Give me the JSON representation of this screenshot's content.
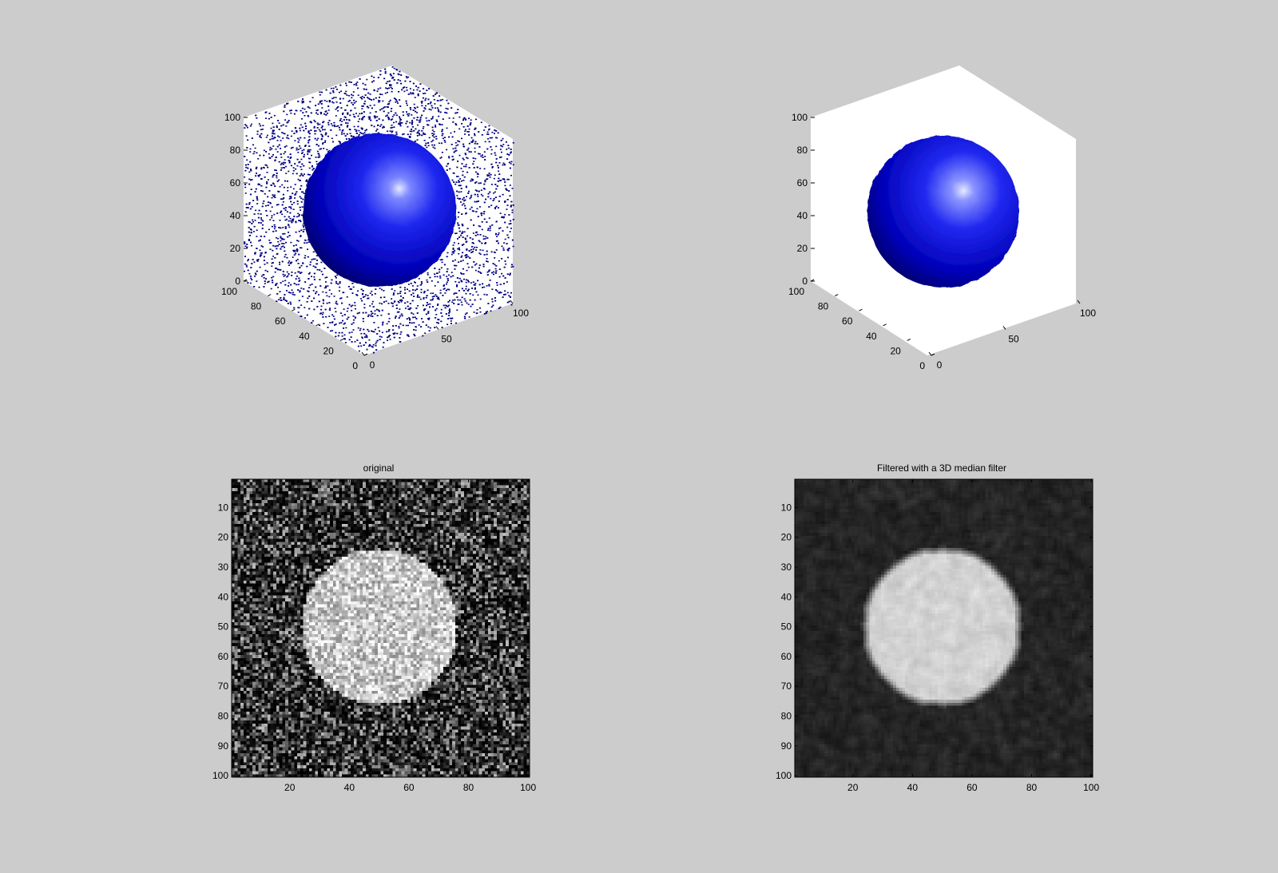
{
  "figure": {
    "background": "#cccccc"
  },
  "chart_data": [
    {
      "type": "isosurface-3d",
      "variant": "noisy",
      "title": "",
      "surface_color": "#0000ff",
      "noise_color": "#000080",
      "x_ticks": [
        "0",
        "50",
        "100"
      ],
      "y_ticks": [
        "0",
        "20",
        "40",
        "60",
        "80",
        "100"
      ],
      "z_ticks": [
        "0",
        "20",
        "40",
        "60",
        "80",
        "100"
      ],
      "xlim": [
        0,
        100
      ],
      "ylim": [
        0,
        100
      ],
      "zlim": [
        0,
        100
      ],
      "sphere": {
        "center": [
          50,
          50,
          50
        ],
        "radius": 26
      }
    },
    {
      "type": "isosurface-3d",
      "variant": "filtered",
      "title": "",
      "surface_color": "#0000ff",
      "x_ticks": [
        "0",
        "50",
        "100"
      ],
      "y_ticks": [
        "0",
        "20",
        "40",
        "60",
        "80",
        "100"
      ],
      "z_ticks": [
        "0",
        "20",
        "40",
        "60",
        "80",
        "100"
      ],
      "xlim": [
        0,
        100
      ],
      "ylim": [
        0,
        100
      ],
      "zlim": [
        0,
        100
      ],
      "sphere": {
        "center": [
          50,
          50,
          50
        ],
        "radius": 26
      }
    },
    {
      "type": "heatmap",
      "colormap": "gray",
      "title": "original",
      "x_ticks": [
        "20",
        "40",
        "60",
        "80",
        "100"
      ],
      "y_ticks": [
        "10",
        "20",
        "30",
        "40",
        "50",
        "60",
        "70",
        "80",
        "90",
        "100"
      ],
      "xlim": [
        0.5,
        100.5
      ],
      "ylim": [
        0.5,
        100.5
      ],
      "disk": {
        "center": [
          50,
          50
        ],
        "radius": 26
      },
      "noise": "high"
    },
    {
      "type": "heatmap",
      "colormap": "gray",
      "title": "Filtered with a 3D median filter",
      "x_ticks": [
        "20",
        "40",
        "60",
        "80",
        "100"
      ],
      "y_ticks": [
        "10",
        "20",
        "30",
        "40",
        "50",
        "60",
        "70",
        "80",
        "90",
        "100"
      ],
      "xlim": [
        0.5,
        100.5
      ],
      "ylim": [
        0.5,
        100.5
      ],
      "disk": {
        "center": [
          50,
          50
        ],
        "radius": 26
      },
      "noise": "low"
    }
  ]
}
